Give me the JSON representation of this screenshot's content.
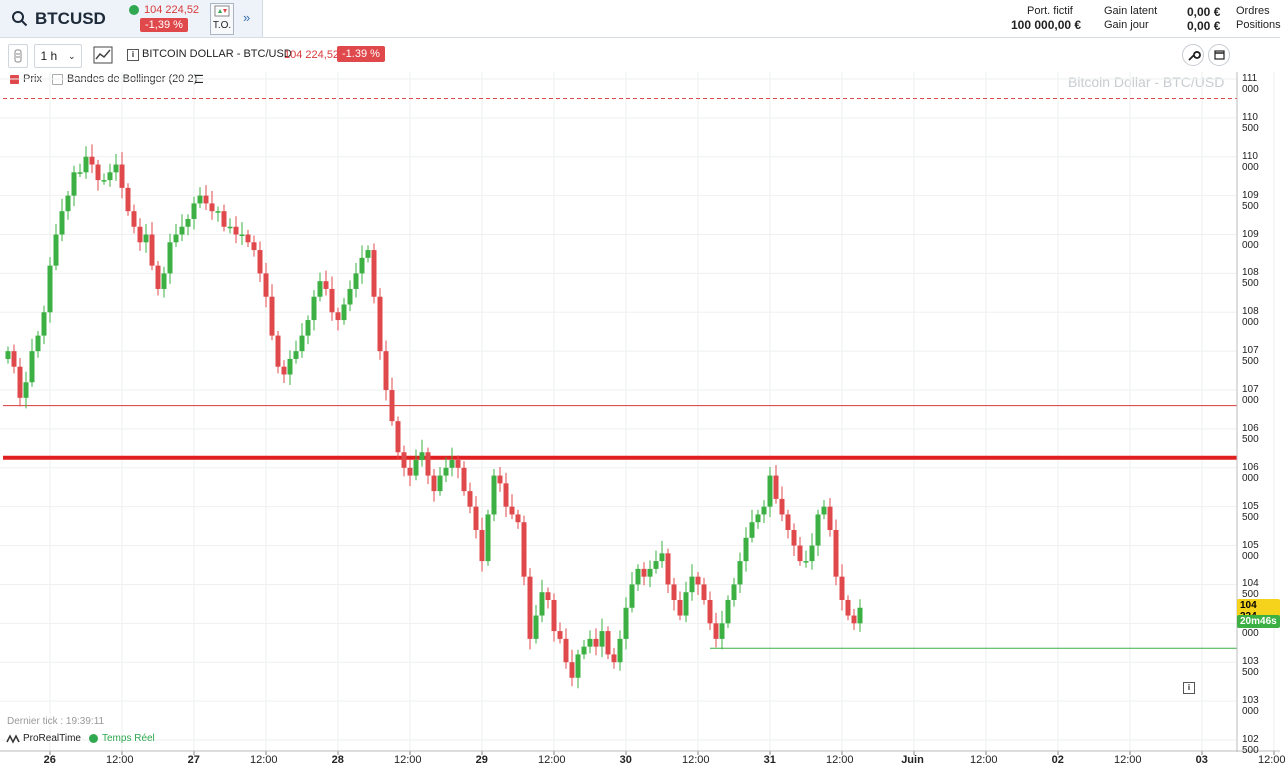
{
  "header": {
    "symbol": "BTCUSD",
    "last_price": "104 224,52",
    "change_pct": "-1,39 %",
    "to_label": "T.O.",
    "expand_icon": "double-chevron-right-icon",
    "portfolio_label": "Port. fictif",
    "portfolio_value": "100 000,00 €",
    "gain_latent_label": "Gain latent",
    "gain_latent_value": "0,00 €",
    "gain_jour_label": "Gain jour",
    "gain_jour_value": "0,00 €",
    "orders_label": "Ordres",
    "positions_label": "Positions"
  },
  "toolbar": {
    "interval": "1 h",
    "instrument_title": "BITCOIN DOLLAR - BTC/USD",
    "price": "104 224,52",
    "change": "-1.39 %"
  },
  "legend": {
    "prix_label": "Prix",
    "bollinger_label": "Bandes de Bollinger (20 2)"
  },
  "chart": {
    "watermark": "Bitcoin Dollar - BTC/USD",
    "y_ticks": [
      "111 000",
      "110 500",
      "110 000",
      "109 500",
      "109 000",
      "108 500",
      "108 000",
      "107 500",
      "107 000",
      "106 500",
      "106 000",
      "105 500",
      "105 000",
      "104 500",
      "104 000",
      "103 500",
      "103 000",
      "102 500"
    ],
    "x_labels": [
      {
        "text": "26",
        "day": true
      },
      {
        "text": "12:00",
        "day": false
      },
      {
        "text": "27",
        "day": true
      },
      {
        "text": "12:00",
        "day": false
      },
      {
        "text": "28",
        "day": true
      },
      {
        "text": "12:00",
        "day": false
      },
      {
        "text": "29",
        "day": true
      },
      {
        "text": "12:00",
        "day": false
      },
      {
        "text": "30",
        "day": true
      },
      {
        "text": "12:00",
        "day": false
      },
      {
        "text": "31",
        "day": true
      },
      {
        "text": "12:00",
        "day": false
      },
      {
        "text": "Juin",
        "day": true
      },
      {
        "text": "12:00",
        "day": false
      },
      {
        "text": "02",
        "day": true
      },
      {
        "text": "12:00",
        "day": false
      },
      {
        "text": "03",
        "day": true
      },
      {
        "text": "12:00",
        "day": false
      }
    ],
    "current_price_tag": "104 224,",
    "countdown_tag": "20m46s",
    "last_tick": "Dernier tick : 19:39:11",
    "provider": "ProRealTime",
    "realtime_label": "Temps Réel",
    "colors": {
      "up": "#3cb043",
      "down": "#e0494b",
      "price_tag": "#f5d31c",
      "countdown": "#3cb043"
    }
  },
  "chart_data": {
    "type": "candlestick",
    "title": "Bitcoin Dollar - BTC/USD",
    "ylim": [
      102500,
      111000
    ],
    "horizontal_lines": [
      {
        "price": 110750,
        "style": "dashed",
        "color": "#e0494b"
      },
      {
        "price": 106800,
        "style": "solid-thin",
        "color": "#d93a3a"
      },
      {
        "price": 106130,
        "style": "solid-thick",
        "color": "#e02020"
      },
      {
        "price": 103680,
        "style": "solid-thin",
        "color": "#3cb043"
      }
    ],
    "closes": [
      107500,
      107300,
      106900,
      107100,
      107500,
      107700,
      108000,
      108600,
      109000,
      109300,
      109500,
      109800,
      109800,
      110000,
      109900,
      109700,
      109700,
      109800,
      109900,
      109600,
      109300,
      109100,
      108900,
      109000,
      108600,
      108300,
      108500,
      108900,
      109000,
      109100,
      109200,
      109400,
      109500,
      109400,
      109300,
      109300,
      109100,
      109100,
      109000,
      109000,
      108900,
      108800,
      108500,
      108200,
      107700,
      107300,
      107200,
      107400,
      107500,
      107700,
      107900,
      108200,
      108400,
      108300,
      108000,
      107900,
      108100,
      108300,
      108500,
      108700,
      108800,
      108200,
      107500,
      107000,
      106600,
      106200,
      106000,
      105900,
      106100,
      106200,
      105900,
      105700,
      105900,
      106000,
      106100,
      106000,
      105700,
      105500,
      105200,
      104800,
      105400,
      105900,
      105800,
      105500,
      105400,
      105300,
      104600,
      103800,
      104100,
      104400,
      104300,
      103900,
      103800,
      103500,
      103300,
      103600,
      103700,
      103800,
      103700,
      103900,
      103600,
      103500,
      103800,
      104200,
      104500,
      104700,
      104600,
      104700,
      104800,
      104900,
      104500,
      104300,
      104100,
      104400,
      104600,
      104500,
      104300,
      104000,
      103800,
      104000,
      104300,
      104500,
      104800,
      105100,
      105300,
      105400,
      105500,
      105900,
      105600,
      105400,
      105200,
      105000,
      104800,
      104800,
      105000,
      105400,
      105500,
      105200,
      104600,
      104300,
      104100,
      104000,
      104200
    ]
  }
}
